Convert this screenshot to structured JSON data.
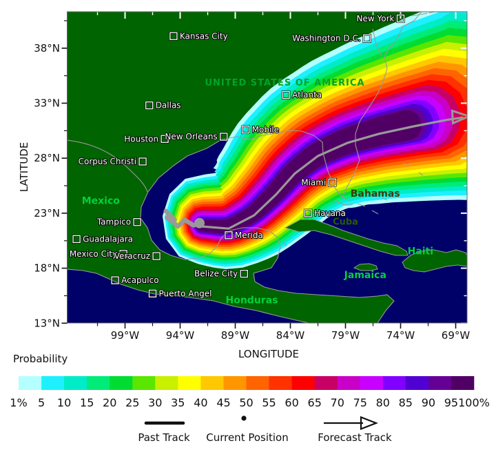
{
  "axes": {
    "x_label": "LONGITUDE",
    "y_label": "LATITUDE",
    "x_tick_labels": [
      "99°W",
      "94°W",
      "89°W",
      "84°W",
      "79°W",
      "74°W",
      "69°W"
    ],
    "x_tick_lons": [
      99,
      94,
      89,
      84,
      79,
      74,
      69
    ],
    "y_tick_labels": [
      "38°N",
      "33°N",
      "28°N",
      "23°N",
      "18°N",
      "13°N"
    ],
    "y_tick_lats": [
      38,
      33,
      28,
      23,
      18,
      13
    ],
    "lon_range_w": [
      104.3,
      68.0
    ],
    "lat_range_n": [
      13.0,
      41.3
    ]
  },
  "colorbar": {
    "title": "Probability",
    "tick_labels": [
      "1%",
      "5",
      "10",
      "15",
      "20",
      "25",
      "30",
      "35",
      "40",
      "45",
      "50",
      "55",
      "60",
      "65",
      "70",
      "75",
      "80",
      "85",
      "90",
      "95",
      "100%"
    ],
    "levels_percent": [
      1,
      5,
      10,
      15,
      20,
      25,
      30,
      35,
      40,
      45,
      50,
      55,
      60,
      65,
      70,
      75,
      80,
      85,
      90,
      95,
      100
    ],
    "colors": [
      "#b4ffff",
      "#1ef0ff",
      "#00ebc8",
      "#00eb78",
      "#00dc32",
      "#5ae600",
      "#c8f000",
      "#ffff00",
      "#ffc800",
      "#ff9600",
      "#ff6400",
      "#ff3200",
      "#ff0000",
      "#c80064",
      "#c800c8",
      "#c800ff",
      "#8200ff",
      "#5000d2",
      "#640096",
      "#500064"
    ]
  },
  "legend": {
    "past_track": "Past Track",
    "current_position": "Current Position",
    "forecast_track": "Forecast Track"
  },
  "map": {
    "water_color": "#000069",
    "land_color": "#006400",
    "coast_color": "#9a9a9a",
    "track_color": "#999999",
    "countries": [
      {
        "name": "UNITED STATES OF AMERICA",
        "lon_w": 84.5,
        "lat_n": 34.6,
        "color": "#00a428",
        "size": 13,
        "spacing": 1
      },
      {
        "name": "Mexico",
        "lon_w": 101.2,
        "lat_n": 23.85,
        "color": "#00d23c",
        "size": 14,
        "spacing": 0
      },
      {
        "name": "Bahamas",
        "lon_w": 76.3,
        "lat_n": 24.5,
        "color": "#3c3c00",
        "size": 14,
        "spacing": 0
      },
      {
        "name": "Cuba",
        "lon_w": 79.0,
        "lat_n": 21.95,
        "color": "#2a5a00",
        "size": 13,
        "spacing": 0
      },
      {
        "name": "Honduras",
        "lon_w": 87.5,
        "lat_n": 14.8,
        "color": "#00d23c",
        "size": 14,
        "spacing": 0
      },
      {
        "name": "Jamaica",
        "lon_w": 77.2,
        "lat_n": 17.1,
        "color": "#00d23c",
        "size": 14,
        "spacing": 0
      },
      {
        "name": "Haiti",
        "lon_w": 72.2,
        "lat_n": 19.25,
        "color": "#00d23c",
        "size": 14,
        "spacing": 0
      }
    ],
    "cities": [
      {
        "name": "Kansas City",
        "lon_w": 94.6,
        "lat_n": 39.1,
        "side": "right"
      },
      {
        "name": "New York",
        "lon_w": 74.0,
        "lat_n": 40.7,
        "side": "left"
      },
      {
        "name": "Washington D.C.",
        "lon_w": 77.05,
        "lat_n": 38.9,
        "side": "left"
      },
      {
        "name": "Atlanta",
        "lon_w": 84.4,
        "lat_n": 33.75,
        "side": "right"
      },
      {
        "name": "Dallas",
        "lon_w": 96.8,
        "lat_n": 32.8,
        "side": "right"
      },
      {
        "name": "Houston",
        "lon_w": 95.4,
        "lat_n": 29.75,
        "side": "left"
      },
      {
        "name": "New Orleans",
        "lon_w": 90.05,
        "lat_n": 29.95,
        "side": "left"
      },
      {
        "name": "Mobile",
        "lon_w": 88.05,
        "lat_n": 30.6,
        "side": "right"
      },
      {
        "name": "Corpus Christi",
        "lon_w": 97.4,
        "lat_n": 27.7,
        "side": "left"
      },
      {
        "name": "Miami",
        "lon_w": 80.2,
        "lat_n": 25.8,
        "side": "left"
      },
      {
        "name": "Havana",
        "lon_w": 82.4,
        "lat_n": 23.0,
        "side": "right"
      },
      {
        "name": "Tampico",
        "lon_w": 97.9,
        "lat_n": 22.2,
        "side": "left"
      },
      {
        "name": "Guadalajara",
        "lon_w": 103.4,
        "lat_n": 20.65,
        "side": "right"
      },
      {
        "name": "Mexico City",
        "lon_w": 99.15,
        "lat_n": 19.3,
        "side": "left"
      },
      {
        "name": "Veracruz",
        "lon_w": 96.15,
        "lat_n": 19.1,
        "side": "left"
      },
      {
        "name": "Merida",
        "lon_w": 89.6,
        "lat_n": 21.0,
        "side": "right"
      },
      {
        "name": "Acapulco",
        "lon_w": 99.9,
        "lat_n": 16.9,
        "side": "right"
      },
      {
        "name": "Puerto Angel",
        "lon_w": 96.5,
        "lat_n": 15.7,
        "side": "right"
      },
      {
        "name": "Belize City",
        "lon_w": 88.2,
        "lat_n": 17.5,
        "side": "left"
      }
    ]
  },
  "chart_data": {
    "type": "heatmap",
    "quantity": "Probability",
    "probability_levels_percent": [
      1,
      5,
      10,
      15,
      20,
      25,
      30,
      35,
      40,
      45,
      50,
      55,
      60,
      65,
      70,
      75,
      80,
      85,
      90,
      95,
      100
    ],
    "probability_bands": [
      {
        "percent_min": 1,
        "percent_max": 5,
        "color": "#b4ffff"
      },
      {
        "percent_min": 5,
        "percent_max": 10,
        "color": "#1ef0ff"
      },
      {
        "percent_min": 10,
        "percent_max": 15,
        "color": "#00ebc8"
      },
      {
        "percent_min": 15,
        "percent_max": 20,
        "color": "#00eb78"
      },
      {
        "percent_min": 20,
        "percent_max": 25,
        "color": "#00dc32"
      },
      {
        "percent_min": 25,
        "percent_max": 30,
        "color": "#5ae600"
      },
      {
        "percent_min": 30,
        "percent_max": 35,
        "color": "#c8f000"
      },
      {
        "percent_min": 35,
        "percent_max": 40,
        "color": "#ffff00"
      },
      {
        "percent_min": 40,
        "percent_max": 45,
        "color": "#ffc800"
      },
      {
        "percent_min": 45,
        "percent_max": 50,
        "color": "#ff9600"
      },
      {
        "percent_min": 50,
        "percent_max": 55,
        "color": "#ff6400"
      },
      {
        "percent_min": 55,
        "percent_max": 60,
        "color": "#ff3200"
      },
      {
        "percent_min": 60,
        "percent_max": 65,
        "color": "#ff0000"
      },
      {
        "percent_min": 65,
        "percent_max": 70,
        "color": "#c80064"
      },
      {
        "percent_min": 70,
        "percent_max": 75,
        "color": "#c800c8"
      },
      {
        "percent_min": 75,
        "percent_max": 80,
        "color": "#c800ff"
      },
      {
        "percent_min": 80,
        "percent_max": 85,
        "color": "#8200ff"
      },
      {
        "percent_min": 85,
        "percent_max": 90,
        "color": "#5000d2"
      },
      {
        "percent_min": 90,
        "percent_max": 95,
        "color": "#640096"
      },
      {
        "percent_min": 95,
        "percent_max": 100,
        "color": "#500064"
      }
    ],
    "current_position": {
      "lon_w": 92.25,
      "lat_n": 22.1
    },
    "past_track_lonlat": [
      [
        95.3,
        23.2
      ],
      [
        94.5,
        22.4
      ],
      [
        95.2,
        22.6
      ],
      [
        94.2,
        21.8
      ],
      [
        93.6,
        22.4
      ],
      [
        92.8,
        21.9
      ],
      [
        92.1,
        22.1
      ]
    ],
    "forecast_track_lonlat": [
      [
        92.1,
        21.8
      ],
      [
        89.6,
        21.6
      ],
      [
        87.3,
        22.8
      ],
      [
        85.3,
        24.7
      ],
      [
        83.6,
        26.6
      ],
      [
        81.5,
        28.2
      ],
      [
        78.8,
        29.4
      ],
      [
        76.0,
        30.2
      ],
      [
        72.8,
        30.9
      ],
      [
        69.7,
        31.5
      ],
      [
        68.3,
        31.7
      ]
    ]
  }
}
